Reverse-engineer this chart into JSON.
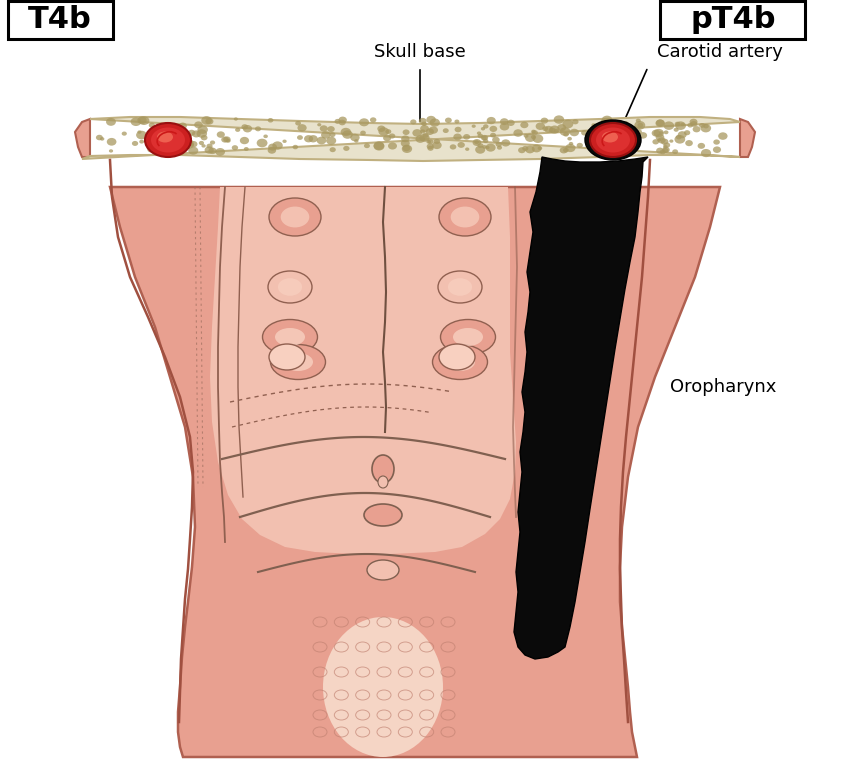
{
  "title_left": "T4b",
  "title_right": "pT4b",
  "label_skull": "Skull base",
  "label_carotid": "Carotid artery",
  "label_oropharynx": "Oropharynx",
  "bg_color": "#ffffff",
  "skin_color": "#e8a090",
  "skin_light": "#f2c0b0",
  "skin_dark": "#c87868",
  "bone_color": "#e8e2cc",
  "bone_border": "#c0b080",
  "bone_stipple": "#a89860",
  "tumor_color": "#0a0a0a",
  "artery_red": "#cc2020",
  "artery_light": "#e85050",
  "muscle_color": "#d09080",
  "inner_light": "#f8d0c0",
  "pink_soft": "#f0c8b8"
}
